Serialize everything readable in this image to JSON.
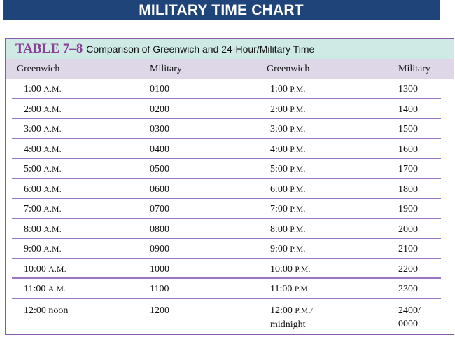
{
  "banner_title": "MILITARY TIME CHART",
  "table": {
    "number": "TABLE 7–8",
    "title": "Comparison of Greenwich and 24-Hour/Military Time",
    "headers": [
      "Greenwich",
      "Military",
      "Greenwich",
      "Military"
    ],
    "rows": [
      {
        "g1": "1:00",
        "s1": "A.M.",
        "m1": "0100",
        "g2": "1:00",
        "s2": "P.M.",
        "m2": "1300"
      },
      {
        "g1": "2:00",
        "s1": "A.M.",
        "m1": "0200",
        "g2": "2:00",
        "s2": "P.M.",
        "m2": "1400"
      },
      {
        "g1": "3:00",
        "s1": "A.M.",
        "m1": "0300",
        "g2": "3:00",
        "s2": "P.M.",
        "m2": "1500"
      },
      {
        "g1": "4:00",
        "s1": "A.M.",
        "m1": "0400",
        "g2": "4:00",
        "s2": "P.M.",
        "m2": "1600"
      },
      {
        "g1": "5:00",
        "s1": "A.M.",
        "m1": "0500",
        "g2": "5:00",
        "s2": "P.M.",
        "m2": "1700"
      },
      {
        "g1": "6:00",
        "s1": "A.M.",
        "m1": "0600",
        "g2": "6:00",
        "s2": "P.M.",
        "m2": "1800"
      },
      {
        "g1": "7:00",
        "s1": "A.M.",
        "m1": "0700",
        "g2": "7:00",
        "s2": "P.M.",
        "m2": "1900"
      },
      {
        "g1": "8:00",
        "s1": "A.M.",
        "m1": "0800",
        "g2": "8:00",
        "s2": "P.M.",
        "m2": "2000"
      },
      {
        "g1": "9:00",
        "s1": "A.M.",
        "m1": "0900",
        "g2": "9:00",
        "s2": "P.M.",
        "m2": "2100"
      },
      {
        "g1": "10:00",
        "s1": "A.M.",
        "m1": "1000",
        "g2": "10:00",
        "s2": "P.M.",
        "m2": "2200"
      },
      {
        "g1": "11:00",
        "s1": "A.M.",
        "m1": "1100",
        "g2": "11:00",
        "s2": "P.M.",
        "m2": "2300"
      }
    ],
    "last_row": {
      "g1": "12:00 noon",
      "m1": "1200",
      "g2_line1_time": "12:00",
      "g2_line1_suffix": "P.M./",
      "g2_line2": "midnight",
      "m2_line1": "2400/",
      "m2_line2": "0000"
    }
  },
  "colors": {
    "banner": "#1f4479",
    "caption_bg": "#cfe9e5",
    "header_bg": "#ddd7e8",
    "rule": "#9b76c0",
    "table_number": "#8a3f97"
  }
}
